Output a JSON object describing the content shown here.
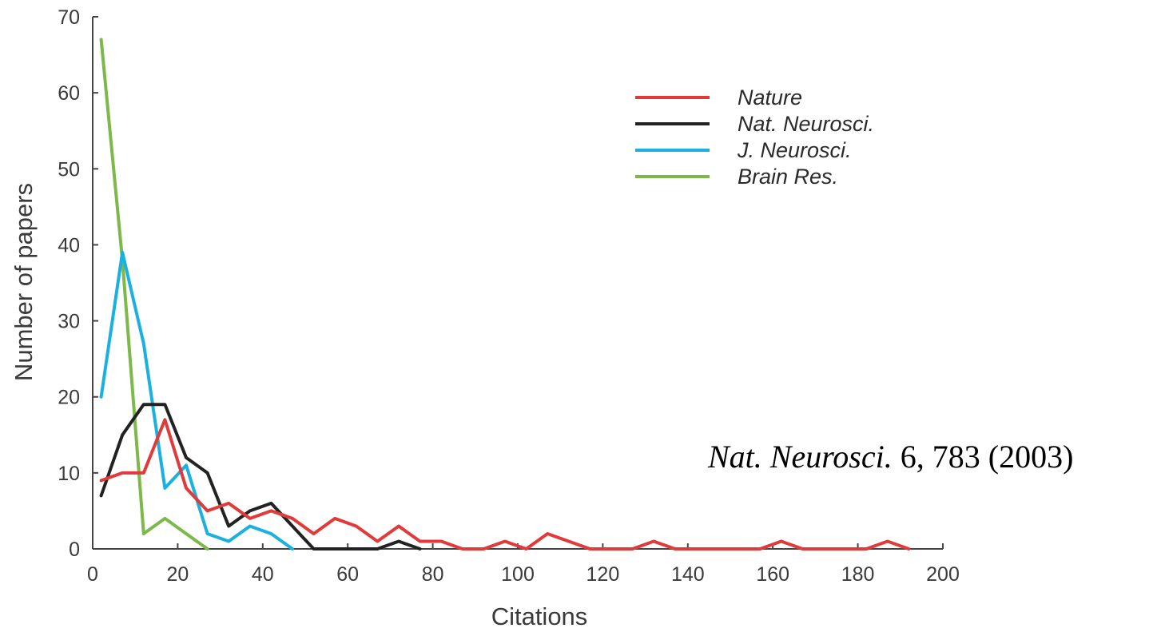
{
  "chart_data": {
    "type": "line",
    "xlabel": "Citations",
    "ylabel": "Number of papers",
    "xlim": [
      0,
      200
    ],
    "ylim": [
      0,
      70
    ],
    "xticks": [
      0,
      20,
      40,
      60,
      80,
      100,
      120,
      140,
      160,
      180,
      200
    ],
    "yticks": [
      0,
      10,
      20,
      30,
      40,
      50,
      60,
      70
    ],
    "grid": false,
    "legend_position": "top-right",
    "series": [
      {
        "name": "Nature",
        "color": "#e03a3a",
        "x": [
          2,
          7,
          12,
          17,
          22,
          27,
          32,
          37,
          42,
          47,
          52,
          57,
          62,
          67,
          72,
          77,
          82,
          87,
          92,
          97,
          102,
          107,
          112,
          117,
          122,
          127,
          132,
          137,
          142,
          147,
          152,
          157,
          162,
          167,
          172,
          177,
          182,
          187,
          192
        ],
        "values": [
          9,
          10,
          10,
          17,
          8,
          5,
          6,
          4,
          5,
          4,
          2,
          4,
          3,
          1,
          3,
          1,
          1,
          0,
          0,
          1,
          0,
          2,
          1,
          0,
          0,
          0,
          1,
          0,
          0,
          0,
          0,
          0,
          1,
          0,
          0,
          0,
          0,
          1,
          0
        ]
      },
      {
        "name": "Nat. Neurosci.",
        "color": "#222222",
        "x": [
          2,
          7,
          12,
          17,
          22,
          27,
          32,
          37,
          42,
          47,
          52,
          57,
          62,
          67,
          72,
          77
        ],
        "values": [
          7,
          15,
          19,
          19,
          12,
          10,
          3,
          5,
          6,
          3,
          0,
          0,
          0,
          0,
          1,
          0
        ]
      },
      {
        "name": "J. Neurosci.",
        "color": "#1ab0e0",
        "x": [
          2,
          7,
          12,
          17,
          22,
          27,
          32,
          37,
          42,
          47
        ],
        "values": [
          20,
          39,
          27,
          8,
          11,
          2,
          1,
          3,
          2,
          0
        ]
      },
      {
        "name": "Brain Res.",
        "color": "#7cb84a",
        "x": [
          2,
          7,
          12,
          17,
          22,
          27
        ],
        "values": [
          67,
          38,
          2,
          4,
          2,
          0
        ]
      }
    ]
  },
  "citation": {
    "journal": "Nat. Neurosci.",
    "rest": " 6, 783 (2003)"
  }
}
